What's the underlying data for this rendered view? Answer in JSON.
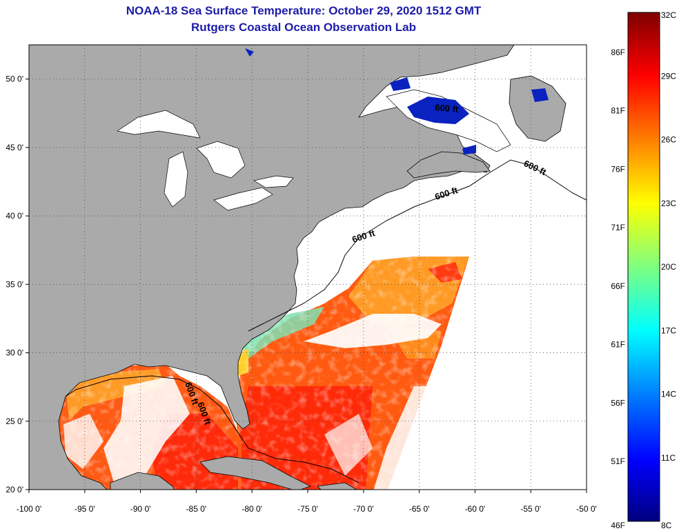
{
  "title": "NOAA-18 Sea Surface Temperature:  October 29, 2020 1512 GMT",
  "subtitle": "Rutgers Coastal Ocean Observation Lab",
  "axes": {
    "lon_ticks": [
      "-100 0'",
      "-95 0'",
      "-90 0'",
      "-85 0'",
      "-80 0'",
      "-75 0'",
      "-70 0'",
      "-65 0'",
      "-60 0'",
      "-55 0'",
      "-50 0'"
    ],
    "lat_ticks": [
      "20 0'",
      "25 0'",
      "30 0'",
      "35 0'",
      "40 0'",
      "45 0'",
      "50 0'"
    ],
    "lon_range": [
      -100,
      -50
    ],
    "lat_range": [
      20,
      52.5
    ],
    "grid": "dotted"
  },
  "contours": {
    "label": "600 ft",
    "labels": [
      "600 ft",
      "600 ft",
      "600 ft",
      "600 ft",
      "600 ft",
      "600 ft"
    ]
  },
  "colorbar": {
    "celsius_labels": [
      "32C",
      "29C",
      "26C",
      "23C",
      "20C",
      "17C",
      "14C",
      "11C",
      "8C"
    ],
    "fahrenheit_labels": [
      "86F",
      "81F",
      "76F",
      "71F",
      "66F",
      "61F",
      "56F",
      "51F",
      "46F"
    ],
    "range_c": [
      8,
      32
    ],
    "colors": [
      "#00007f",
      "#0000ff",
      "#007fff",
      "#00ffff",
      "#7fff7f",
      "#ffff00",
      "#ff7f00",
      "#ff0000",
      "#7f0000"
    ]
  },
  "colors": {
    "land": "#aaaaaa",
    "ocean_nodata": "#ffffff",
    "title": "#1c1ca8"
  }
}
